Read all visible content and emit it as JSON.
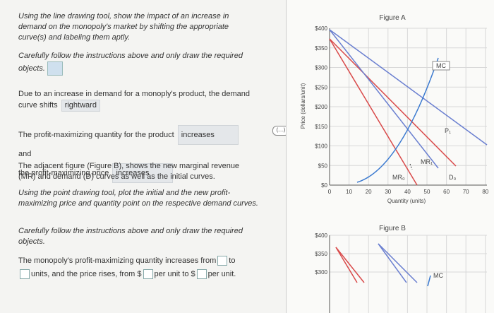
{
  "left": {
    "instructions": "Using the line drawing tool, show the impact of an increase in demand on the monopoly's market by shifting the appropriate curve(s) and labeling them aptly.",
    "careful_a": "Carefully follow the instructions above and only draw the required objects.",
    "demand_shift": {
      "text": "Due to an increase in demand for a monoply's product, the demand curve shifts",
      "answer": "rightward"
    },
    "profit_max": {
      "quantity_text": "The profit-maximizing quantity for the product",
      "quantity_answer": "increases",
      "and": "and",
      "price_text": "the profit-maximizing price",
      "price_answer": "increases"
    },
    "figure_b_intro": "The adjacent figure (Figure B), shows the new marginal revenue (MR) and demand (D) curves as well as the initial curves.",
    "point_tool": "Using the point drawing tool, plot the initial and the new profit-maximizing price and quantity point on the respective demand curves.",
    "careful_b": "Carefully follow the instructions above and only draw the required objects.",
    "fill_in": {
      "part1": "The monopoly's profit-maximizing quantity increases from",
      "part2": "to",
      "part3": "units, and the price rises, from $",
      "part4": "per unit to $",
      "part5": "per unit."
    }
  },
  "toggle": "(....)",
  "figure_a": {
    "title": "Figure A",
    "y_label": "Price (dollars/unit)",
    "x_label": "Quantity (units)",
    "yticks": [
      "$400",
      "$350",
      "$300",
      "$250",
      "$200",
      "$150",
      "$100",
      "$50",
      "$0"
    ],
    "xticks": [
      "0",
      "10",
      "20",
      "30",
      "40",
      "50",
      "60",
      "70",
      "80"
    ],
    "curve_labels": {
      "mc": "MC",
      "mr1": "MR₁",
      "p1": "P₁",
      "d0": "D₀",
      "mr0": "MR₀"
    }
  },
  "figure_b": {
    "title": "Figure B",
    "yticks": [
      "$400",
      "$350",
      "$300"
    ],
    "mc": "MC"
  }
}
